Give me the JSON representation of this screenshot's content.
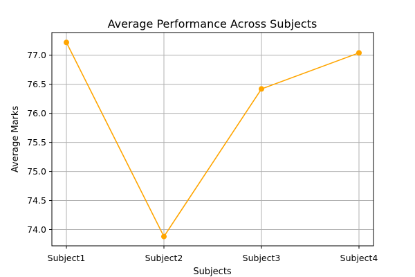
{
  "chart_data": {
    "type": "line",
    "title": "Average Performance Across Subjects",
    "xlabel": "Subjects",
    "ylabel": "Average Marks",
    "categories": [
      "Subject1",
      "Subject2",
      "Subject3",
      "Subject4"
    ],
    "series": [
      {
        "values": [
          77.22,
          73.88,
          76.42,
          77.04
        ]
      }
    ],
    "ylim": [
      73.72,
      77.39
    ],
    "yticks": [
      74.0,
      74.5,
      75.0,
      75.5,
      76.0,
      76.5,
      77.0
    ],
    "ytick_labels": [
      "74.0",
      "74.5",
      "75.0",
      "75.5",
      "76.0",
      "76.5",
      "77.0"
    ],
    "grid": true,
    "marker": "circle",
    "line_color": "#ffa500"
  }
}
